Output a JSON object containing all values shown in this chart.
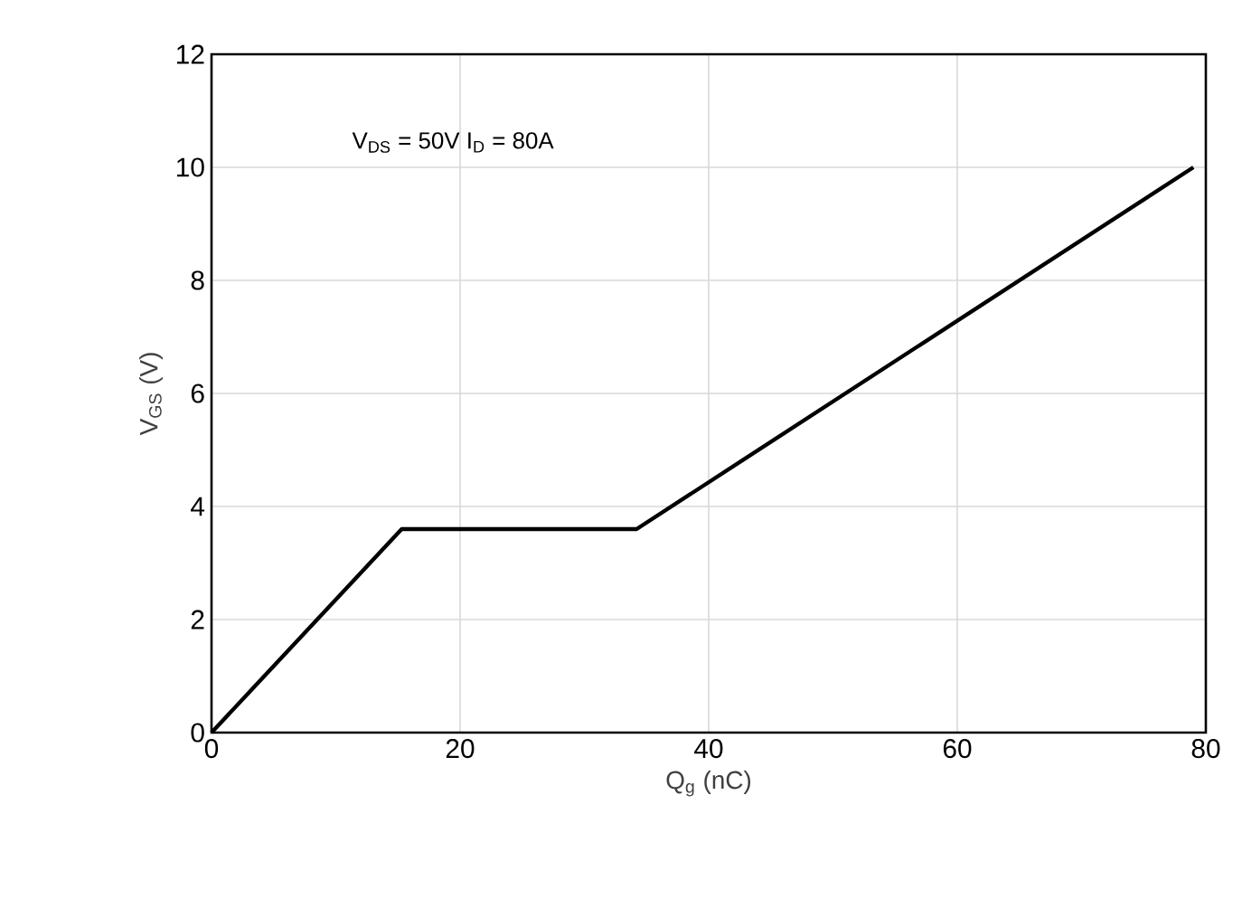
{
  "chart_data": {
    "type": "line",
    "xlabel": "Q$_{g}$ (nC)",
    "ylabel": "V$_{GS}$ (V)",
    "annotations": [
      "V$_{DS}$ = 50V I$_{D}$ = 80A"
    ],
    "x": [
      0,
      15.3,
      34.2,
      79
    ],
    "series": [
      {
        "color": "#000000",
        "values": [
          0,
          3.6,
          3.6,
          10
        ]
      }
    ],
    "xlim": [
      0,
      80
    ],
    "ylim": [
      0,
      12
    ],
    "xticks": [
      0,
      20,
      40,
      60,
      80
    ],
    "yticks": [
      0,
      2,
      4,
      6,
      8,
      10,
      12
    ],
    "grid": true,
    "line_style": "solid"
  }
}
